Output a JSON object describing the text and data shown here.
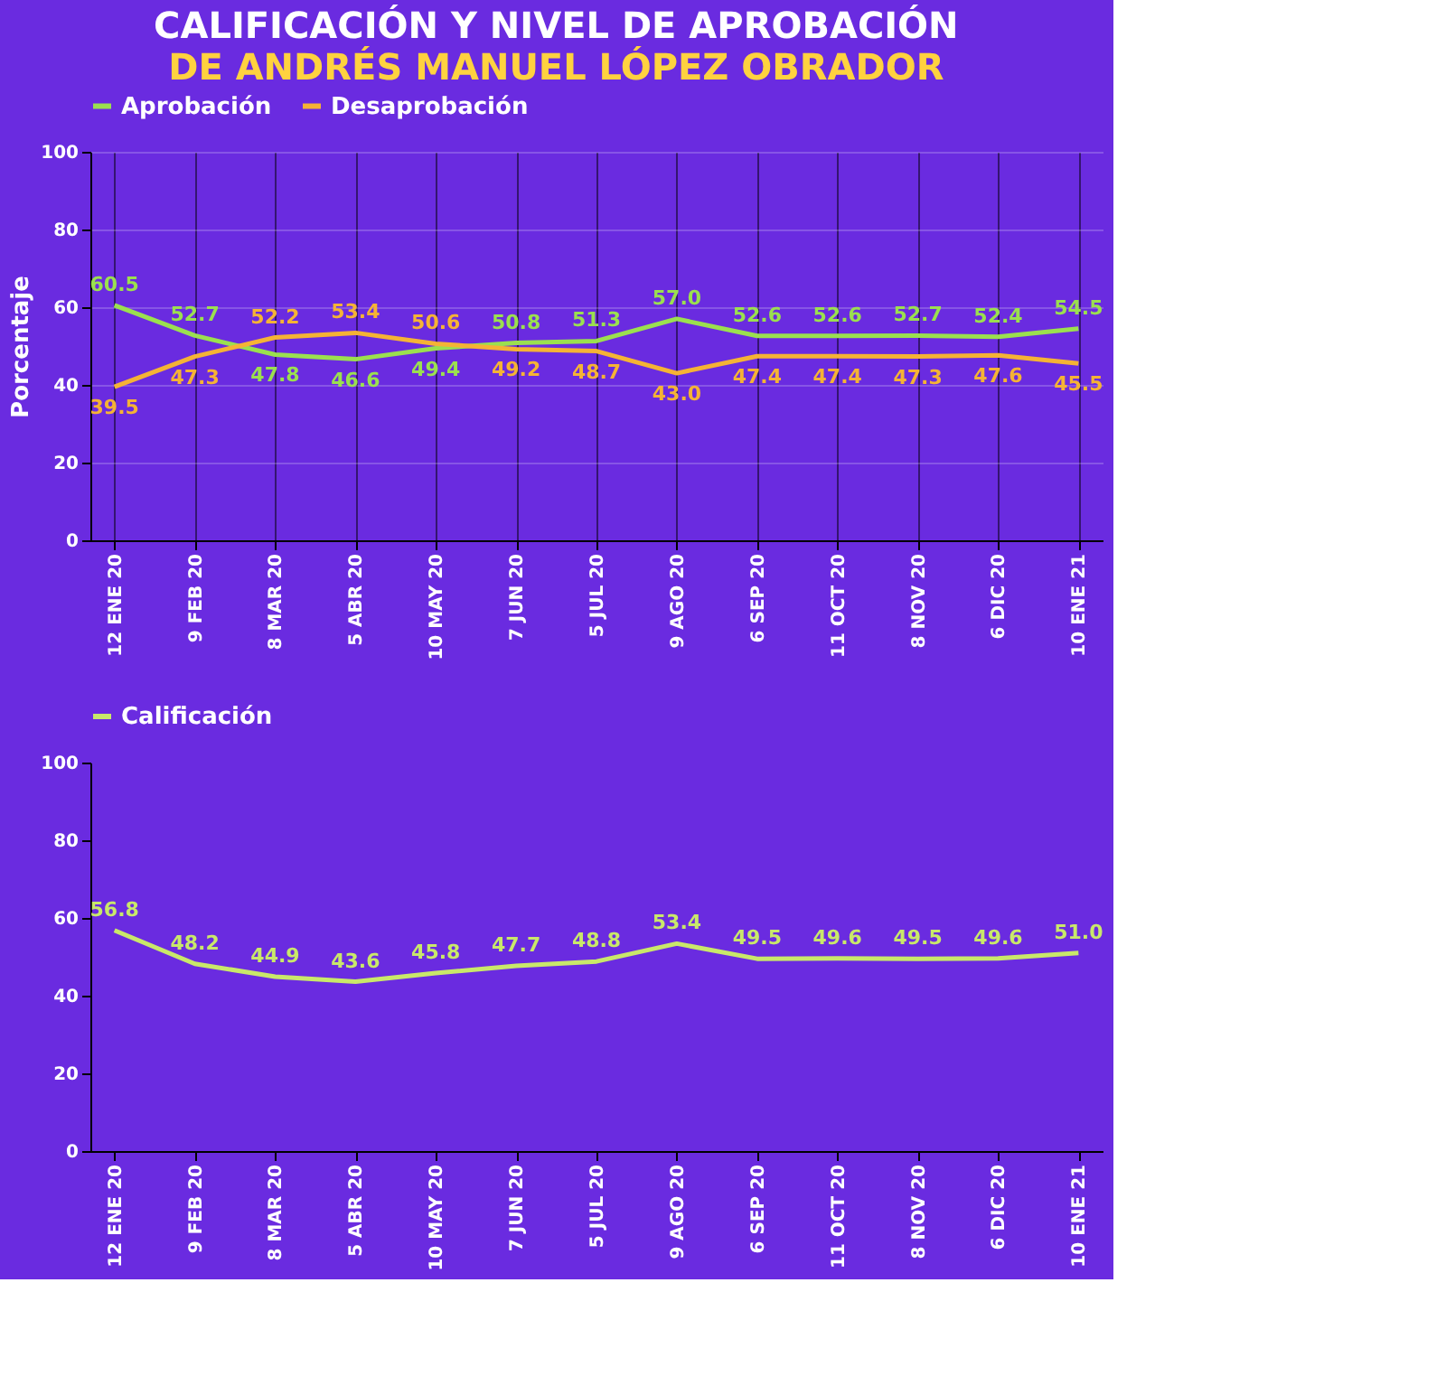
{
  "chart_data": [
    {
      "type": "line",
      "title": "CALIFICACIÓN Y NIVEL DE APROBACIÓN",
      "subtitle": "DE ANDRÉS MANUEL LÓPEZ OBRADOR",
      "ylabel": "Porcentaje",
      "categories": [
        "12 ENE 20",
        "9 FEB 20",
        "8 MAR 20",
        "5 ABR 20",
        "10 MAY 20",
        "7 JUN 20",
        "5 JUL 20",
        "9 AGO 20",
        "6 SEP 20",
        "11 OCT 20",
        "8 NOV 20",
        "6 DIC 20",
        "10 ENE 21"
      ],
      "series": [
        {
          "name": "Aprobación",
          "color": "#9be04f",
          "values": [
            60.5,
            52.7,
            47.8,
            46.6,
            49.4,
            50.8,
            51.3,
            57.0,
            52.6,
            52.6,
            52.7,
            52.4,
            54.5
          ],
          "value_labels": [
            "60.5",
            "52.7",
            "47.8",
            "46.6",
            "49.4",
            "50.8",
            "51.3",
            "57.0",
            "52.6",
            "52.6",
            "52.7",
            "52.4",
            "54.5"
          ]
        },
        {
          "name": "Desaprobación",
          "color": "#f5b335",
          "values": [
            39.5,
            47.3,
            52.2,
            53.4,
            50.6,
            49.2,
            48.7,
            43.0,
            47.4,
            47.4,
            47.3,
            47.6,
            45.5
          ],
          "value_labels": [
            "39.5",
            "47.3",
            "52.2",
            "53.4",
            "50.6",
            "49.2",
            "48.7",
            "43.0",
            "47.4",
            "47.4",
            "47.3",
            "47.6",
            "45.5"
          ]
        }
      ],
      "ylim": [
        0,
        100
      ],
      "yticks": [
        0,
        20,
        40,
        60,
        80,
        100
      ],
      "grid": true,
      "legend": "top left"
    },
    {
      "type": "line",
      "categories": [
        "12 ENE 20",
        "9 FEB 20",
        "8 MAR 20",
        "5 ABR 20",
        "10 MAY 20",
        "7 JUN 20",
        "5 JUL 20",
        "9 AGO 20",
        "6 SEP 20",
        "11 OCT 20",
        "8 NOV 20",
        "6 DIC 20",
        "10 ENE 21"
      ],
      "series": [
        {
          "name": "Calificación",
          "color": "#c9e86a",
          "values": [
            56.8,
            48.2,
            44.9,
            43.6,
            45.8,
            47.7,
            48.8,
            53.4,
            49.5,
            49.6,
            49.5,
            49.6,
            51.0
          ],
          "value_labels": [
            "56.8",
            "48.2",
            "44.9",
            "43.6",
            "45.8",
            "47.7",
            "48.8",
            "53.4",
            "49.5",
            "49.6",
            "49.5",
            "49.6",
            "51.0"
          ]
        }
      ],
      "ylim": [
        0,
        100
      ],
      "yticks": [
        0,
        20,
        40,
        60,
        80,
        100
      ],
      "grid": false,
      "legend": "top left"
    }
  ]
}
